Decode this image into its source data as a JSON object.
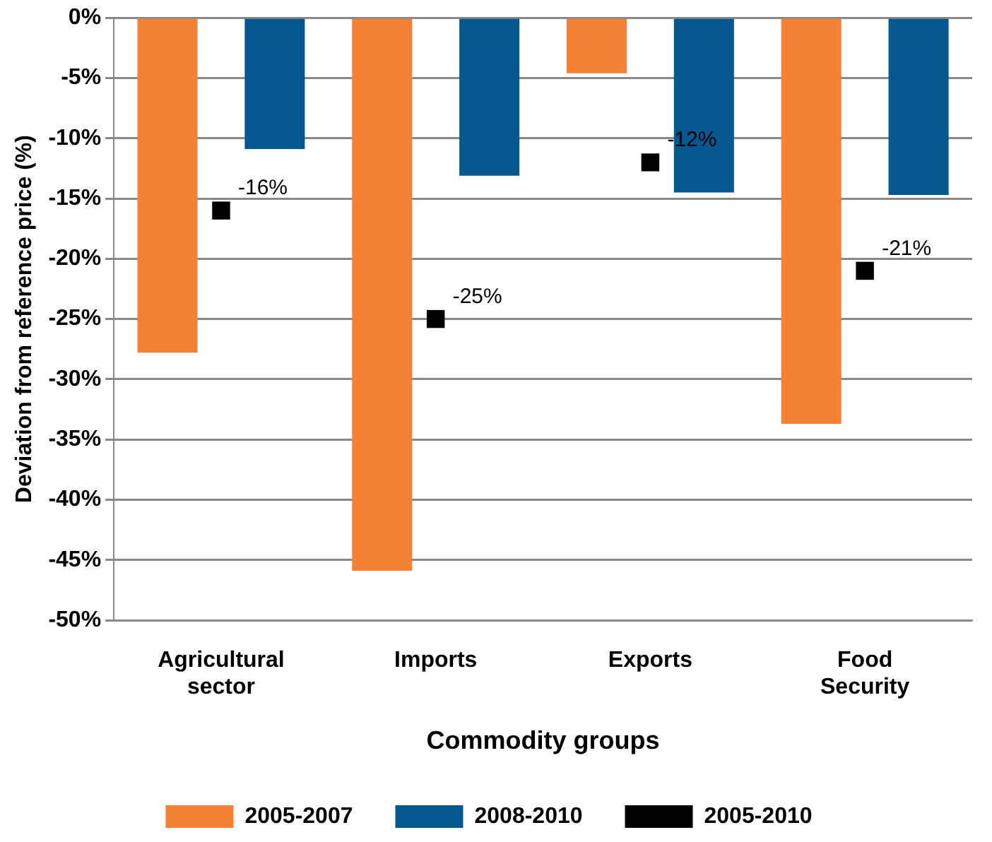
{
  "chart_data": {
    "type": "bar",
    "xlabel": "Commodity groups",
    "ylabel": "Deviation from reference price (%)",
    "categories": [
      "Agricultural sector",
      "Imports",
      "Exports",
      "Food Security"
    ],
    "series": [
      {
        "name": "2005-2007",
        "color": "#f58137",
        "values": [
          -27.8,
          -45.9,
          -4.6,
          -33.7
        ]
      },
      {
        "name": "2008-2010",
        "color": "#04588f",
        "values": [
          -10.9,
          -13.1,
          -14.5,
          -14.7
        ]
      },
      {
        "name": "2005-2010",
        "type": "scatter",
        "marker": "square",
        "color": "#000000",
        "values": [
          -16,
          -25,
          -12,
          -21
        ],
        "value_labels": [
          "-16%",
          "-25%",
          "-12%",
          "-21%"
        ]
      }
    ],
    "ylim": [
      -50,
      0
    ],
    "yticks": [
      {
        "value": 0,
        "label": "0%"
      },
      {
        "value": -5,
        "label": "-5%"
      },
      {
        "value": -10,
        "label": "-10%"
      },
      {
        "value": -15,
        "label": "-15%"
      },
      {
        "value": -20,
        "label": "-20%"
      },
      {
        "value": -25,
        "label": "-25%"
      },
      {
        "value": -30,
        "label": "-30%"
      },
      {
        "value": -35,
        "label": "-35%"
      },
      {
        "value": -40,
        "label": "-40%"
      },
      {
        "value": -45,
        "label": "-45%"
      },
      {
        "value": -50,
        "label": "-50%"
      }
    ],
    "grid": "y",
    "legend": "bottom"
  }
}
